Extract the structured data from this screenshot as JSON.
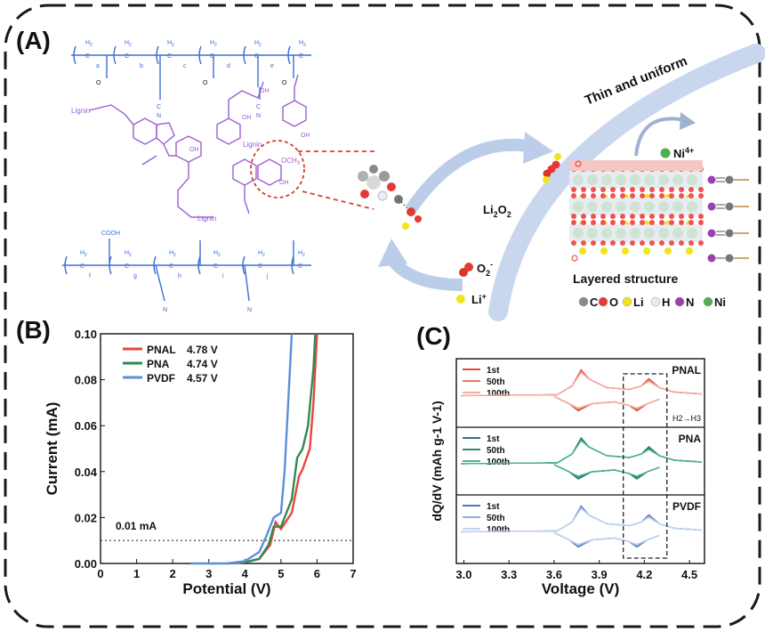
{
  "panels": {
    "a": "(A)",
    "b": "(B)",
    "c": "(C)"
  },
  "panel_a": {
    "lignin_label": "Lignin",
    "h2": "H",
    "sub2": "2",
    "ch": "C",
    "h": "H",
    "c": "C",
    "n": "N",
    "o": "O",
    "oh": "OH",
    "och3": "OCH",
    "sub3": "3",
    "cooh": "COOH",
    "indices_top": [
      "a",
      "b",
      "c",
      "d",
      "e"
    ],
    "indices_bottom": [
      "f",
      "g",
      "h",
      "i",
      "j"
    ],
    "thin_uniform": "Thin and uniform",
    "ni4": "Ni",
    "ni4_sup": "4+",
    "li2o2_main": "Li",
    "li2o2_sub": "2",
    "li2o2_o": "O",
    "o2_main": "O",
    "o2_sub": "2",
    "o2_sup": "-",
    "li_main": "Li",
    "li_sup": "+",
    "layered": "Layered structure",
    "legend": [
      {
        "sym": "C",
        "color": "#8a8a8a"
      },
      {
        "sym": "O",
        "color": "#e53935"
      },
      {
        "sym": "Li",
        "color": "#f2e41b"
      },
      {
        "sym": "H",
        "color": "#eaeaea"
      },
      {
        "sym": "N",
        "color": "#9c3fb0"
      },
      {
        "sym": "Ni",
        "color": "#4caf50"
      }
    ]
  },
  "colors": {
    "polymer": "#3d6fd6",
    "lignin": "#9b5fd0",
    "pnal": "#e8463a",
    "pna": "#2e8b57",
    "pvdf": "#5b8fd8",
    "accent_red": "#d44030",
    "arrow": "#b8cbe9"
  },
  "chart_data": [
    {
      "type": "line",
      "panel": "B",
      "xlabel": "Potential (V)",
      "ylabel": "Current (mA)",
      "xlim": [
        0,
        7
      ],
      "ylim": [
        0,
        0.1
      ],
      "xticks": [
        "0",
        "1",
        "2",
        "3",
        "4",
        "5",
        "6",
        "7"
      ],
      "yticks": [
        "0.00",
        "0.02",
        "0.04",
        "0.06",
        "0.08",
        "0.10"
      ],
      "legend_position": "top-left",
      "threshold": {
        "value": 0.01,
        "label": "0.01 mA"
      },
      "series": [
        {
          "name": "PNAL",
          "legend_value": "4.78 V",
          "color": "#e8463a",
          "points": [
            [
              3.5,
              0
            ],
            [
              4.0,
              0.0005
            ],
            [
              4.4,
              0.002
            ],
            [
              4.7,
              0.008
            ],
            [
              4.85,
              0.018
            ],
            [
              5.0,
              0.015
            ],
            [
              5.3,
              0.022
            ],
            [
              5.5,
              0.038
            ],
            [
              5.6,
              0.041
            ],
            [
              5.8,
              0.05
            ],
            [
              5.9,
              0.07
            ],
            [
              6.0,
              0.1
            ]
          ]
        },
        {
          "name": "PNA",
          "legend_value": "4.74 V",
          "color": "#2e8b57",
          "points": [
            [
              3.5,
              0
            ],
            [
              4.0,
              0.0005
            ],
            [
              4.4,
              0.002
            ],
            [
              4.65,
              0.008
            ],
            [
              4.8,
              0.016
            ],
            [
              5.0,
              0.016
            ],
            [
              5.3,
              0.028
            ],
            [
              5.45,
              0.046
            ],
            [
              5.6,
              0.05
            ],
            [
              5.75,
              0.06
            ],
            [
              5.9,
              0.085
            ],
            [
              5.95,
              0.1
            ]
          ]
        },
        {
          "name": "PVDF",
          "legend_value": "4.57 V",
          "color": "#5b8fd8",
          "points": [
            [
              2.5,
              0
            ],
            [
              3.5,
              0
            ],
            [
              4.0,
              0.001
            ],
            [
              4.4,
              0.005
            ],
            [
              4.6,
              0.012
            ],
            [
              4.8,
              0.02
            ],
            [
              5.0,
              0.022
            ],
            [
              5.1,
              0.04
            ],
            [
              5.2,
              0.07
            ],
            [
              5.3,
              0.1
            ]
          ]
        }
      ]
    },
    {
      "type": "line",
      "panel": "C",
      "xlabel": "Voltage (V)",
      "ylabel": "dQ/dV (mAh g-1 V-1)",
      "xlim": [
        2.95,
        4.6
      ],
      "xticks": [
        "3.0",
        "3.3",
        "3.6",
        "3.9",
        "4.2",
        "4.5"
      ],
      "highlight_range": [
        4.06,
        4.35
      ],
      "annotation": "H2→H3",
      "subpanels": [
        {
          "name": "PNAL",
          "cycles": [
            "1st",
            "50th",
            "100th"
          ],
          "colors": [
            "#e04a3a",
            "#ea7868",
            "#f3aea4"
          ]
        },
        {
          "name": "PNA",
          "cycles": [
            "1st",
            "50th",
            "100th"
          ],
          "colors": [
            "#2e6f8a",
            "#2e8b6a",
            "#4cb48a"
          ]
        },
        {
          "name": "PVDF",
          "cycles": [
            "1st",
            "50th",
            "100th"
          ],
          "colors": [
            "#4f74c0",
            "#8fabd9",
            "#c3d4ef"
          ]
        }
      ]
    }
  ]
}
